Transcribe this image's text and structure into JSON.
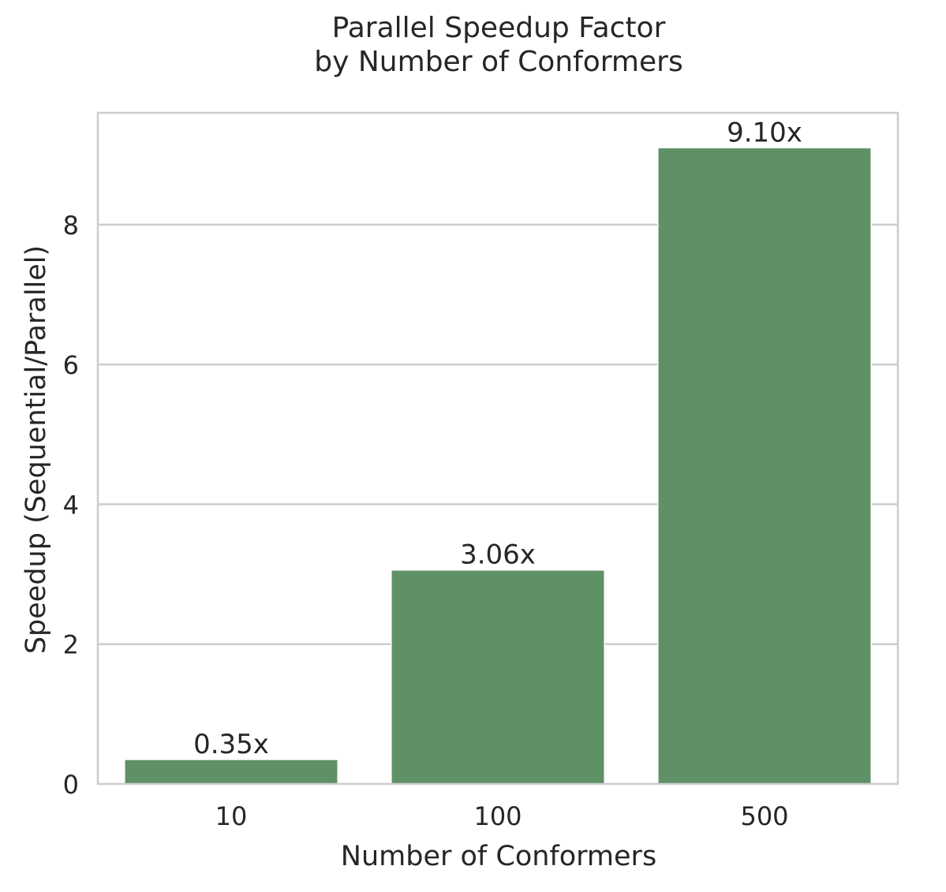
{
  "chart_data": {
    "type": "bar",
    "title_lines": [
      "Parallel Speedup Factor",
      "by Number of Conformers"
    ],
    "xlabel": "Number of Conformers",
    "ylabel": "Speedup (Sequential/Parallel)",
    "categories": [
      "10",
      "100",
      "500"
    ],
    "values": [
      0.35,
      3.06,
      9.1
    ],
    "value_labels": [
      "0.35x",
      "3.06x",
      "9.10x"
    ],
    "ylim": [
      0,
      9.6
    ],
    "yticks": [
      0,
      2,
      4,
      6,
      8
    ],
    "ytick_labels": [
      "0",
      "2",
      "4",
      "6",
      "8"
    ],
    "grid": "y",
    "colors": {
      "bar": "#5f9166",
      "grid": "#cccccc",
      "frame": "#cccccc",
      "text": "#262626"
    }
  }
}
